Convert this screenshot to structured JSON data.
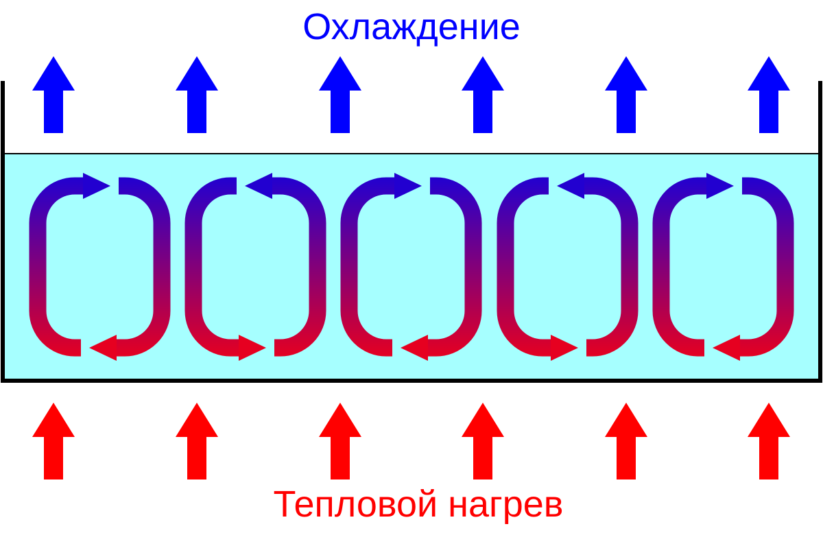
{
  "top_label": "Охлаждение",
  "bottom_label": "Тепловой нагрев",
  "colors": {
    "cooling": "#0000ff",
    "heating": "#ff0000",
    "liquid": "#a6ffff",
    "vessel": "#000000",
    "loop_top": "#2200d0",
    "loop_bottom": "#e60020"
  },
  "cooling_arrow_count": 6,
  "heating_arrow_count": 6,
  "convection_cells": [
    {
      "index": 1,
      "rotation": "clockwise"
    },
    {
      "index": 2,
      "rotation": "counterclockwise"
    },
    {
      "index": 3,
      "rotation": "clockwise"
    },
    {
      "index": 4,
      "rotation": "counterclockwise"
    },
    {
      "index": 5,
      "rotation": "clockwise"
    }
  ]
}
